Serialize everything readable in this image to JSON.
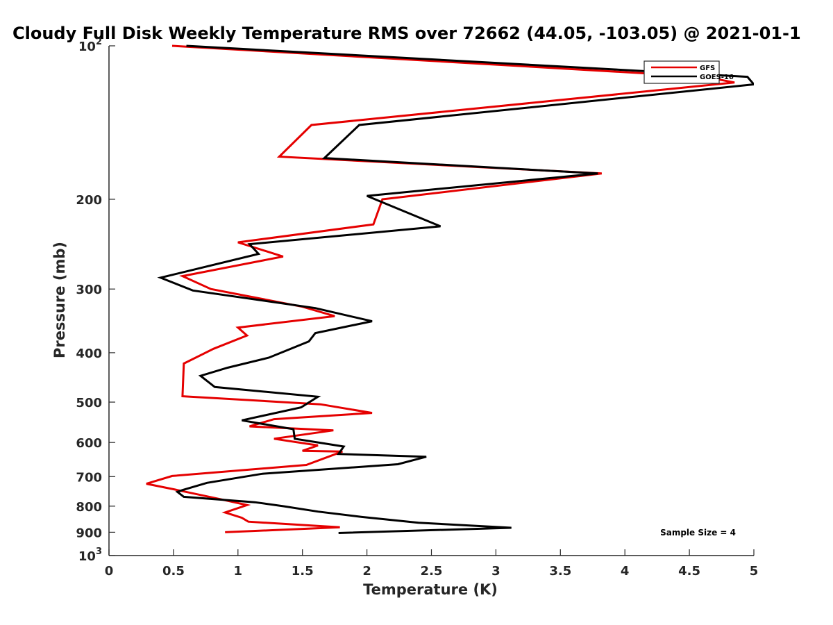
{
  "chart_data": {
    "type": "line",
    "title": "Cloudy Full Disk Weekly Temperature RMS over 72662 (44.05, -103.05) @ 2021-01-1",
    "xlabel": "Temperature (K)",
    "ylabel": "Pressure (mb)",
    "xlim": [
      0,
      5
    ],
    "ylim": [
      1000,
      100
    ],
    "y_scale": "log",
    "y_reversed": true,
    "x_ticks": [
      "0",
      "0.5",
      "1",
      "1.5",
      "2",
      "2.5",
      "3",
      "3.5",
      "4",
      "4.5",
      "5"
    ],
    "y_ticks": [
      {
        "base": "10",
        "exp": "2"
      },
      {
        "base": "200",
        "exp": ""
      },
      {
        "base": "300",
        "exp": ""
      },
      {
        "base": "400",
        "exp": ""
      },
      {
        "base": "500",
        "exp": ""
      },
      {
        "base": "600",
        "exp": ""
      },
      {
        "base": "700",
        "exp": ""
      },
      {
        "base": "800",
        "exp": ""
      },
      {
        "base": "900",
        "exp": ""
      },
      {
        "base": "10",
        "exp": "3"
      }
    ],
    "grid": false,
    "legend_position": "top-right",
    "series": [
      {
        "name": "GFS",
        "color": "#e50000",
        "x": [
          0.49,
          4.62,
          4.85,
          1.57,
          1.32,
          3.82,
          2.12,
          2.05,
          1.0,
          1.35,
          0.57,
          0.79,
          1.5,
          1.75,
          1.0,
          1.07,
          0.81,
          0.58,
          0.57,
          1.64,
          2.04,
          1.28,
          1.09,
          1.74,
          1.28,
          1.62,
          1.5,
          1.81,
          1.53,
          0.49,
          0.29,
          0.51,
          0.86,
          1.07,
          0.9,
          1.03,
          1.08,
          1.79,
          0.9
        ],
        "y": [
          100,
          115,
          118,
          143,
          165,
          178,
          200,
          224,
          243,
          259,
          283,
          300,
          325,
          339,
          357,
          370,
          393,
          420,
          487,
          505,
          525,
          540,
          558,
          568,
          590,
          608,
          623,
          625,
          664,
          698,
          723,
          742,
          775,
          796,
          823,
          843,
          858,
          880,
          900
        ]
      },
      {
        "name": "GOES-16",
        "color": "#000000",
        "x": [
          0.6,
          4.95,
          5.0,
          1.94,
          1.67,
          3.79,
          2.0,
          2.57,
          1.09,
          1.16,
          0.4,
          0.65,
          1.6,
          2.04,
          1.6,
          1.55,
          1.24,
          0.92,
          0.71,
          0.82,
          1.62,
          1.49,
          1.03,
          1.43,
          1.44,
          1.82,
          1.78,
          2.46,
          2.24,
          1.19,
          0.76,
          0.57,
          0.53,
          0.58,
          1.13,
          1.35,
          1.62,
          1.96,
          2.4,
          3.12,
          1.78
        ],
        "y": [
          100,
          115,
          119,
          143,
          166,
          178,
          197,
          226,
          245,
          256,
          285,
          302,
          327,
          347,
          366,
          380,
          409,
          428,
          444,
          467,
          488,
          512,
          543,
          565,
          590,
          611,
          632,
          640,
          662,
          691,
          720,
          744,
          750,
          767,
          786,
          800,
          820,
          840,
          862,
          882,
          903
        ]
      }
    ],
    "annotation": "Sample Size = 4"
  }
}
